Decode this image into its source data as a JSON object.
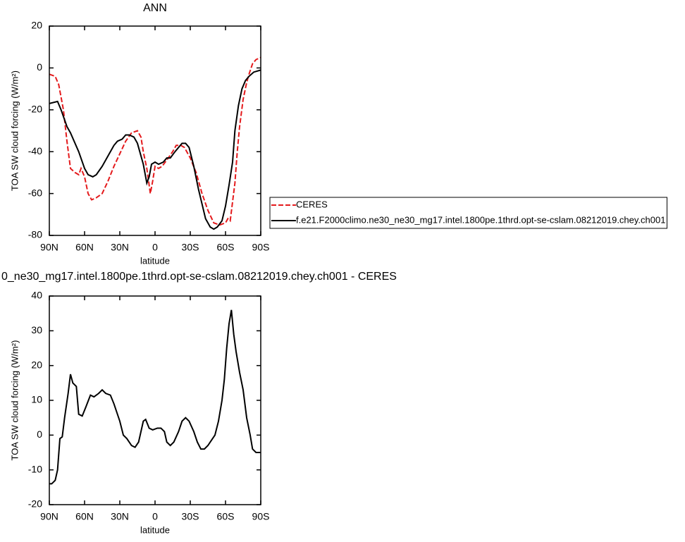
{
  "chart_data": [
    {
      "type": "line",
      "title": "ANN",
      "xlabel": "latitude",
      "ylabel": "TOA SW cloud forcing (W/m²)",
      "xlim": [
        90,
        -90
      ],
      "xticks": [
        {
          "value": 90,
          "label": "90N"
        },
        {
          "value": 60,
          "label": "60N"
        },
        {
          "value": 30,
          "label": "30N"
        },
        0,
        {
          "value": -30,
          "label": "30S"
        },
        {
          "value": -60,
          "label": "60S"
        },
        {
          "value": -90,
          "label": "90S"
        }
      ],
      "ylim": [
        -80,
        20
      ],
      "yticks": [
        -80,
        -60,
        -40,
        -20,
        0,
        20
      ],
      "legend": "right",
      "series": [
        {
          "name": "CERES",
          "color": "#e41a1c",
          "dashed": true,
          "x": [
            90,
            85,
            82,
            78,
            75,
            72,
            68,
            65,
            63,
            60,
            57,
            54,
            50,
            45,
            40,
            35,
            30,
            25,
            20,
            15,
            12,
            10,
            7,
            4,
            2,
            0,
            -3,
            -6,
            -10,
            -15,
            -18,
            -22,
            -25,
            -30,
            -35,
            -40,
            -45,
            -50,
            -55,
            -60,
            -62,
            -64,
            -68,
            -70,
            -72,
            -75,
            -78,
            -80,
            -83,
            -86,
            -90
          ],
          "values": [
            -3,
            -4,
            -8,
            -20,
            -35,
            -48,
            -50,
            -51,
            -48,
            -52,
            -60,
            -63,
            -62,
            -60,
            -54,
            -47,
            -41,
            -35,
            -31,
            -30,
            -33,
            -40,
            -48,
            -60,
            -54,
            -47,
            -48,
            -47,
            -44,
            -40,
            -37,
            -37,
            -38,
            -43,
            -50,
            -60,
            -68,
            -74,
            -75,
            -74,
            -72,
            -73,
            -55,
            -40,
            -28,
            -15,
            -7,
            -3,
            2,
            4,
            5
          ]
        },
        {
          "name": "f.e21.F2000climo.ne30_ne30_mg17.intel.1800pe.1thrd.opt-se-cslam.08212019.chey.ch001",
          "color": "#000000",
          "dashed": false,
          "x": [
            90,
            83,
            80,
            75,
            72,
            65,
            60,
            57,
            53,
            50,
            45,
            40,
            35,
            32,
            28,
            25,
            22,
            18,
            15,
            10,
            7,
            5,
            3,
            0,
            -3,
            -7,
            -10,
            -13,
            -17,
            -20,
            -23,
            -26,
            -29,
            -33,
            -37,
            -40,
            -43,
            -47,
            -50,
            -53,
            -57,
            -60,
            -63,
            -66,
            -68,
            -71,
            -74,
            -77,
            -80,
            -84,
            -90
          ],
          "values": [
            -17,
            -16,
            -20,
            -28,
            -31,
            -40,
            -48,
            -51,
            -52,
            -51,
            -47,
            -42,
            -37,
            -35,
            -34,
            -32,
            -32,
            -33,
            -36,
            -46,
            -55,
            -52,
            -46,
            -45,
            -46,
            -45,
            -43,
            -43,
            -40,
            -38,
            -36,
            -36,
            -38,
            -47,
            -58,
            -65,
            -72,
            -76,
            -77,
            -76,
            -73,
            -66,
            -56,
            -45,
            -30,
            -18,
            -10,
            -6,
            -4,
            -2,
            -1
          ]
        }
      ]
    },
    {
      "type": "line",
      "title": "0_ne30_mg17.intel.1800pe.1thrd.opt-se-cslam.08212019.chey.ch001 - CERES",
      "xlabel": "latitude",
      "ylabel": "TOA SW cloud forcing (W/m²)",
      "xlim": [
        90,
        -90
      ],
      "xticks": [
        {
          "value": 90,
          "label": "90N"
        },
        {
          "value": 60,
          "label": "60N"
        },
        {
          "value": 30,
          "label": "30N"
        },
        0,
        {
          "value": -30,
          "label": "30S"
        },
        {
          "value": -60,
          "label": "60S"
        },
        {
          "value": -90,
          "label": "90S"
        }
      ],
      "ylim": [
        -20,
        40
      ],
      "yticks": [
        -20,
        -10,
        0,
        10,
        20,
        30,
        40
      ],
      "series": [
        {
          "color": "#000000",
          "dashed": false,
          "x": [
            90,
            88,
            85,
            83,
            81,
            79,
            77,
            74,
            72,
            70,
            67,
            65,
            62,
            59,
            55,
            52,
            48,
            45,
            42,
            38,
            35,
            30,
            27,
            24,
            20,
            17,
            14,
            10,
            8,
            5,
            2,
            -2,
            -5,
            -8,
            -10,
            -13,
            -16,
            -20,
            -23,
            -26,
            -29,
            -33,
            -36,
            -39,
            -42,
            -45,
            -48,
            -51,
            -54,
            -57,
            -59,
            -61,
            -63,
            -65,
            -67,
            -69,
            -72,
            -75,
            -78,
            -81,
            -83,
            -86,
            -90
          ],
          "values": [
            -14,
            -14,
            -13,
            -10,
            -1,
            -0.5,
            5,
            12,
            17.5,
            15,
            14,
            6,
            5.5,
            8,
            11.5,
            11,
            12,
            13,
            12,
            11.5,
            9,
            4,
            0,
            -1,
            -3,
            -3.5,
            -2,
            4,
            4.5,
            2,
            1.5,
            2,
            2,
            1,
            -2,
            -3,
            -2,
            1,
            4,
            5,
            4,
            1,
            -2,
            -4,
            -4,
            -3,
            -1.5,
            0,
            4,
            10,
            16,
            25,
            32,
            36,
            29,
            24,
            18,
            13,
            5,
            0,
            -4,
            -5,
            -5
          ]
        }
      ]
    }
  ]
}
